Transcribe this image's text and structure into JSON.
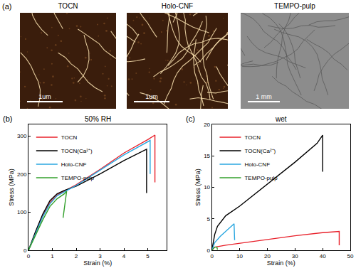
{
  "image_panel": {
    "label": "(a)",
    "images": [
      {
        "title": "TOCN",
        "scale_bar": "1um",
        "color": "#3a1d0c"
      },
      {
        "title": "Holo-CNF",
        "scale_bar": "1um",
        "color": "#3a1d0c"
      },
      {
        "title": "TEMPO-pulp",
        "scale_bar": "1 mm",
        "color": "#8c8c8c"
      }
    ]
  },
  "chart_data": [
    {
      "type": "line",
      "panel": "(b)",
      "title": "50% RH",
      "x_label": "Strain (%)",
      "y_label": "Stress (MPa)",
      "xlim": [
        0,
        5.8
      ],
      "ylim": [
        0,
        330
      ],
      "xticks": [
        0,
        1,
        2,
        3,
        4,
        5
      ],
      "yticks": [
        0,
        100,
        200,
        300
      ],
      "grid": false,
      "legend": "upper left",
      "series": [
        {
          "name": "TOCN",
          "color": "#e8202a",
          "x": [
            0,
            0.3,
            0.6,
            0.9,
            1.2,
            1.5,
            2,
            3,
            4,
            5,
            5.3,
            5.3
          ],
          "values": [
            0,
            45,
            90,
            125,
            145,
            155,
            172,
            212,
            255,
            290,
            302,
            178
          ]
        },
        {
          "name": "TOCN(Ca²⁺)",
          "color": "#000000",
          "x": [
            0,
            0.3,
            0.6,
            0.9,
            1.2,
            1.5,
            2,
            3,
            4,
            4.95,
            4.95
          ],
          "values": [
            0,
            50,
            95,
            130,
            148,
            157,
            168,
            200,
            235,
            265,
            150
          ]
        },
        {
          "name": "Holo-CNF",
          "color": "#2aa7e0",
          "x": [
            0,
            0.3,
            0.6,
            0.9,
            1.2,
            1.5,
            2,
            3,
            4,
            5.1,
            5.1
          ],
          "values": [
            0,
            45,
            88,
            122,
            143,
            153,
            170,
            210,
            250,
            288,
            200
          ]
        },
        {
          "name": "TEMPO-pulp",
          "color": "#33a02c",
          "x": [
            0,
            0.3,
            0.6,
            0.9,
            1.2,
            1.5,
            1.6,
            1.45
          ],
          "values": [
            0,
            40,
            80,
            115,
            135,
            148,
            155,
            85
          ]
        }
      ]
    },
    {
      "type": "line",
      "panel": "(c)",
      "title": "wet",
      "x_label": "Strain (%)",
      "y_label": "Stress (MPa)",
      "xlim": [
        0,
        50
      ],
      "ylim": [
        0,
        20
      ],
      "xticks": [
        0,
        10,
        20,
        30,
        40,
        50
      ],
      "yticks": [
        0,
        5,
        10,
        15,
        20
      ],
      "grid": false,
      "legend": "upper left",
      "series": [
        {
          "name": "TOCN",
          "color": "#e8202a",
          "x": [
            0,
            1,
            5,
            10,
            20,
            30,
            40,
            45,
            46,
            46
          ],
          "values": [
            0,
            0.5,
            0.8,
            1.1,
            1.7,
            2.3,
            2.8,
            3.0,
            3.0,
            0.8
          ]
        },
        {
          "name": "TOCN(Ca²⁺)",
          "color": "#000000",
          "x": [
            0,
            1,
            2,
            5,
            10,
            20,
            30,
            38,
            40,
            40
          ],
          "values": [
            0,
            2.5,
            3.8,
            5.5,
            7,
            10.5,
            14,
            17,
            18.3,
            12.5
          ]
        },
        {
          "name": "Holo-CNF",
          "color": "#2aa7e0",
          "x": [
            0,
            1,
            3,
            5,
            8,
            8.2
          ],
          "values": [
            0,
            1.2,
            2.2,
            3,
            4.2,
            1.6
          ]
        },
        {
          "name": "TEMPO-pulp",
          "color": "#33a02c",
          "x": [
            0,
            0.5,
            1,
            1.8,
            2
          ],
          "values": [
            0,
            0.3,
            0.5,
            0.5,
            0.1
          ]
        }
      ]
    }
  ]
}
